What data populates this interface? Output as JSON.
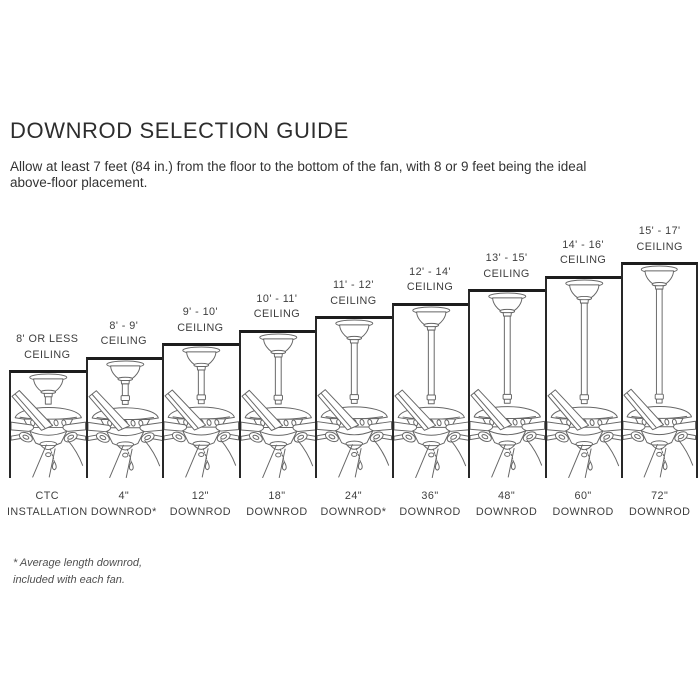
{
  "header": {
    "title": "DOWNROD SELECTION GUIDE",
    "subtitle_lines": [
      "Allow at least 7 feet (84 in.) from the floor to the bottom of the fan, with 8 or 9 feet being the ideal",
      "above-floor placement."
    ]
  },
  "diagram": {
    "cells": [
      {
        "ceiling_lines": [
          "8' OR LESS",
          "CEILING"
        ],
        "downrod_lines": [
          "CTC",
          "INSTALLATION"
        ]
      },
      {
        "ceiling_lines": [
          "8' - 9'",
          "CEILING"
        ],
        "downrod_lines": [
          "4\"",
          "DOWNROD*"
        ]
      },
      {
        "ceiling_lines": [
          "9' - 10'",
          "CEILING"
        ],
        "downrod_lines": [
          "12\"",
          "DOWNROD"
        ]
      },
      {
        "ceiling_lines": [
          "10' - 11'",
          "CEILING"
        ],
        "downrod_lines": [
          "18\"",
          "DOWNROD"
        ]
      },
      {
        "ceiling_lines": [
          "11' - 12'",
          "CEILING"
        ],
        "downrod_lines": [
          "24\"",
          "DOWNROD*"
        ]
      },
      {
        "ceiling_lines": [
          "12' - 14'",
          "CEILING"
        ],
        "downrod_lines": [
          "36\"",
          "DOWNROD"
        ]
      },
      {
        "ceiling_lines": [
          "13' - 15'",
          "CEILING"
        ],
        "downrod_lines": [
          "48\"",
          "DOWNROD"
        ]
      },
      {
        "ceiling_lines": [
          "14' - 16'",
          "CEILING"
        ],
        "downrod_lines": [
          "60\"",
          "DOWNROD"
        ]
      },
      {
        "ceiling_lines": [
          "15' - 17'",
          "CEILING"
        ],
        "downrod_lines": [
          "72\"",
          "DOWNROD"
        ]
      }
    ],
    "colors": {
      "line_art": "#666666",
      "ceiling_border": "#1d1d1d",
      "label_text": "#3e3e3e"
    }
  },
  "footnote": {
    "lines": [
      "* Average length downrod,",
      "included with each fan."
    ]
  }
}
